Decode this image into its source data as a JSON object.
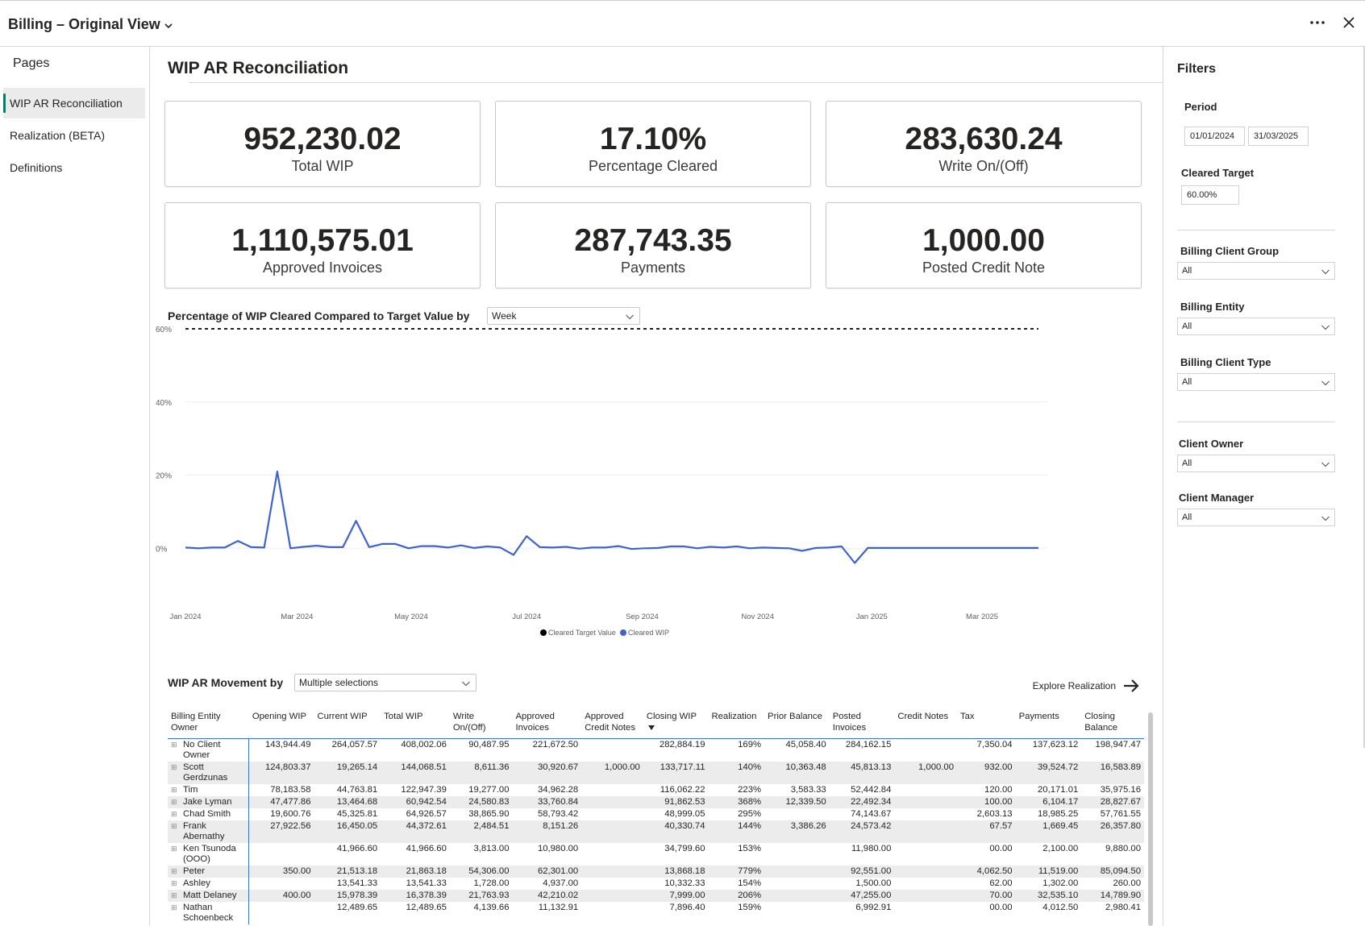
{
  "app": {
    "title": "Billing – Original View"
  },
  "pages": {
    "heading": "Pages",
    "items": [
      {
        "label": "WIP AR Reconciliation",
        "active": true
      },
      {
        "label": "Realization (BETA)",
        "active": false
      },
      {
        "label": "Definitions",
        "active": false
      }
    ]
  },
  "report": {
    "title": "WIP AR Reconciliation",
    "kpis": [
      {
        "value": "952,230.02",
        "label": "Total WIP"
      },
      {
        "value": "17.10%",
        "label": "Percentage Cleared"
      },
      {
        "value": "283,630.24",
        "label": "Write On/(Off)"
      },
      {
        "value": "1,110,575.01",
        "label": "Approved Invoices"
      },
      {
        "value": "287,743.35",
        "label": "Payments"
      },
      {
        "value": "1,000.00",
        "label": "Posted Credit Note"
      }
    ],
    "chart_heading": "Percentage of WIP Cleared Compared to Target Value by",
    "chart_granularity": "Week",
    "table_heading": "WIP AR Movement by",
    "table_selector": "Multiple selections",
    "explore_link": "Explore Realization"
  },
  "chart_data": {
    "type": "line",
    "title": "",
    "xlabel": "",
    "ylabel": "",
    "ylim": [
      -0.05,
      0.6
    ],
    "yticks": [
      {
        "value": 0.0,
        "label": "0%"
      },
      {
        "value": 0.2,
        "label": "20%"
      },
      {
        "value": 0.4,
        "label": "40%"
      },
      {
        "value": 0.6,
        "label": "60%"
      }
    ],
    "xticks": [
      {
        "index": 0,
        "label": "Jan 2024"
      },
      {
        "index": 8.5,
        "label": "Mar 2024"
      },
      {
        "index": 17.2,
        "label": "May 2024"
      },
      {
        "index": 26,
        "label": "Jul 2024"
      },
      {
        "index": 34.8,
        "label": "Sep 2024"
      },
      {
        "index": 43.6,
        "label": "Nov 2024"
      },
      {
        "index": 52.3,
        "label": "Jan 2025"
      },
      {
        "index": 60.7,
        "label": "Mar 2025"
      }
    ],
    "grid": true,
    "legend": "bottom",
    "series": [
      {
        "name": "Cleared Target Value",
        "color": "#000000",
        "style": "dashed",
        "values": [
          0.6,
          0.6,
          0.6,
          0.6,
          0.6,
          0.6,
          0.6,
          0.6,
          0.6,
          0.6,
          0.6,
          0.6,
          0.6,
          0.6,
          0.6,
          0.6,
          0.6,
          0.6,
          0.6,
          0.6,
          0.6,
          0.6,
          0.6,
          0.6,
          0.6,
          0.6,
          0.6,
          0.6,
          0.6,
          0.6,
          0.6,
          0.6,
          0.6,
          0.6,
          0.6,
          0.6,
          0.6,
          0.6,
          0.6,
          0.6,
          0.6,
          0.6,
          0.6,
          0.6,
          0.6,
          0.6,
          0.6,
          0.6,
          0.6,
          0.6,
          0.6,
          0.6,
          0.6,
          0.6,
          0.6,
          0.6,
          0.6,
          0.6,
          0.6,
          0.6,
          0.6,
          0.6,
          0.6,
          0.6,
          0.6,
          0.6
        ]
      },
      {
        "name": "Cleared WIP",
        "color": "#3f62cc",
        "style": "solid",
        "values": [
          0.002,
          0.0,
          0.002,
          0.002,
          0.02,
          0.003,
          0.002,
          0.21,
          0.0,
          0.004,
          0.007,
          0.003,
          0.003,
          0.075,
          0.003,
          0.012,
          0.012,
          0.0,
          0.006,
          0.006,
          0.002,
          0.008,
          0.001,
          0.005,
          0.002,
          -0.018,
          0.033,
          0.003,
          0.002,
          0.004,
          -0.001,
          0.002,
          0.002,
          0.006,
          -0.002,
          0.0,
          0.001,
          0.005,
          0.005,
          0.0,
          0.004,
          0.002,
          0.005,
          0.0,
          0.002,
          0.001,
          0.0,
          -0.007,
          0.001,
          0.002,
          0.005,
          -0.04,
          0.001,
          0.001,
          0.001,
          0.001,
          0.001,
          0.001,
          0.001,
          0.001,
          0.001,
          0.001,
          0.001,
          0.001,
          0.001,
          0.001
        ]
      }
    ]
  },
  "table": {
    "columns": [
      "Billing Entity Owner",
      "Opening WIP",
      "Current WIP",
      "Total WIP",
      "Write On/(Off)",
      "Approved Invoices",
      "Approved Credit Notes",
      "Closing WIP",
      "Realization",
      "Prior Balance",
      "Posted Invoices",
      "Credit Notes",
      "Tax",
      "Payments",
      "Closing Balance"
    ],
    "rows": [
      [
        "No Client Owner",
        "143,944.49",
        "264,057.57",
        "408,002.06",
        "90,487.95",
        "221,672.50",
        "",
        "282,884.19",
        "169%",
        "45,058.40",
        "284,162.15",
        "",
        "7,350.04",
        "137,623.12",
        "198,947.47"
      ],
      [
        "Scott Gerdzunas",
        "124,803.37",
        "19,265.14",
        "144,068.51",
        "8,611.36",
        "30,920.67",
        "1,000.00",
        "133,717.11",
        "140%",
        "10,363.48",
        "45,813.13",
        "1,000.00",
        "932.00",
        "39,524.72",
        "16,583.89"
      ],
      [
        "Tim",
        "78,183.58",
        "44,763.81",
        "122,947.39",
        "19,277.00",
        "34,962.28",
        "",
        "116,062.22",
        "223%",
        "3,583.33",
        "52,442.84",
        "",
        "120.00",
        "20,171.01",
        "35,975.16"
      ],
      [
        "Jake Lyman",
        "47,477.86",
        "13,464.68",
        "60,942.54",
        "24,580.83",
        "33,760.84",
        "",
        "91,862.53",
        "368%",
        "12,339.50",
        "22,492.34",
        "",
        "100.00",
        "6,104.17",
        "28,827.67"
      ],
      [
        "Chad Smith",
        "19,600.76",
        "45,325.81",
        "64,926.57",
        "38,865.90",
        "58,793.42",
        "",
        "48,999.05",
        "295%",
        "",
        "74,143.67",
        "",
        "2,603.13",
        "18,985.25",
        "57,761.55"
      ],
      [
        "Frank Abernathy",
        "27,922.56",
        "16,450.05",
        "44,372.61",
        "2,484.51",
        "8,151.26",
        "",
        "40,330.74",
        "144%",
        "3,386.26",
        "24,573.42",
        "",
        "67.57",
        "1,669.45",
        "26,357.80"
      ],
      [
        "Ken Tsunoda (OOO)",
        "",
        "41,966.60",
        "41,966.60",
        "3,813.00",
        "10,980.00",
        "",
        "34,799.60",
        "153%",
        "",
        "11,980.00",
        "",
        "00.00",
        "2,100.00",
        "9,880.00"
      ],
      [
        "Peter",
        "350.00",
        "21,513.18",
        "21,863.18",
        "54,306.00",
        "62,301.00",
        "",
        "13,868.18",
        "779%",
        "",
        "92,551.00",
        "",
        "4,062.50",
        "11,519.00",
        "85,094.50"
      ],
      [
        "Ashley",
        "",
        "13,541.33",
        "13,541.33",
        "1,728.00",
        "4,937.00",
        "",
        "10,332.33",
        "154%",
        "",
        "1,500.00",
        "",
        "62.00",
        "1,302.00",
        "260.00"
      ],
      [
        "Matt Delaney",
        "400.00",
        "15,978.39",
        "16,378.39",
        "21,763.93",
        "42,210.02",
        "",
        "7,999.00",
        "206%",
        "",
        "47,255.00",
        "",
        "70.00",
        "32,535.10",
        "14,789.90"
      ],
      [
        "Nathan Schoenbeck",
        "",
        "12,489.65",
        "12,489.65",
        "4,139.66",
        "11,132.91",
        "",
        "7,896.40",
        "159%",
        "",
        "6,992.91",
        "",
        "00.00",
        "4,012.50",
        "2,980.41"
      ]
    ]
  },
  "filters": {
    "title": "Filters",
    "period_label": "Period",
    "period_start": "01/01/2024",
    "period_end": "31/03/2025",
    "cleared_target_label": "Cleared Target",
    "cleared_target_value": "60.00%",
    "slicers": [
      {
        "label": "Billing Client Group",
        "value": "All"
      },
      {
        "label": "Billing Entity",
        "value": "All"
      },
      {
        "label": "Billing Client Type",
        "value": "All"
      },
      {
        "label": "Client Owner",
        "value": "All"
      },
      {
        "label": "Client Manager",
        "value": "All"
      }
    ]
  }
}
